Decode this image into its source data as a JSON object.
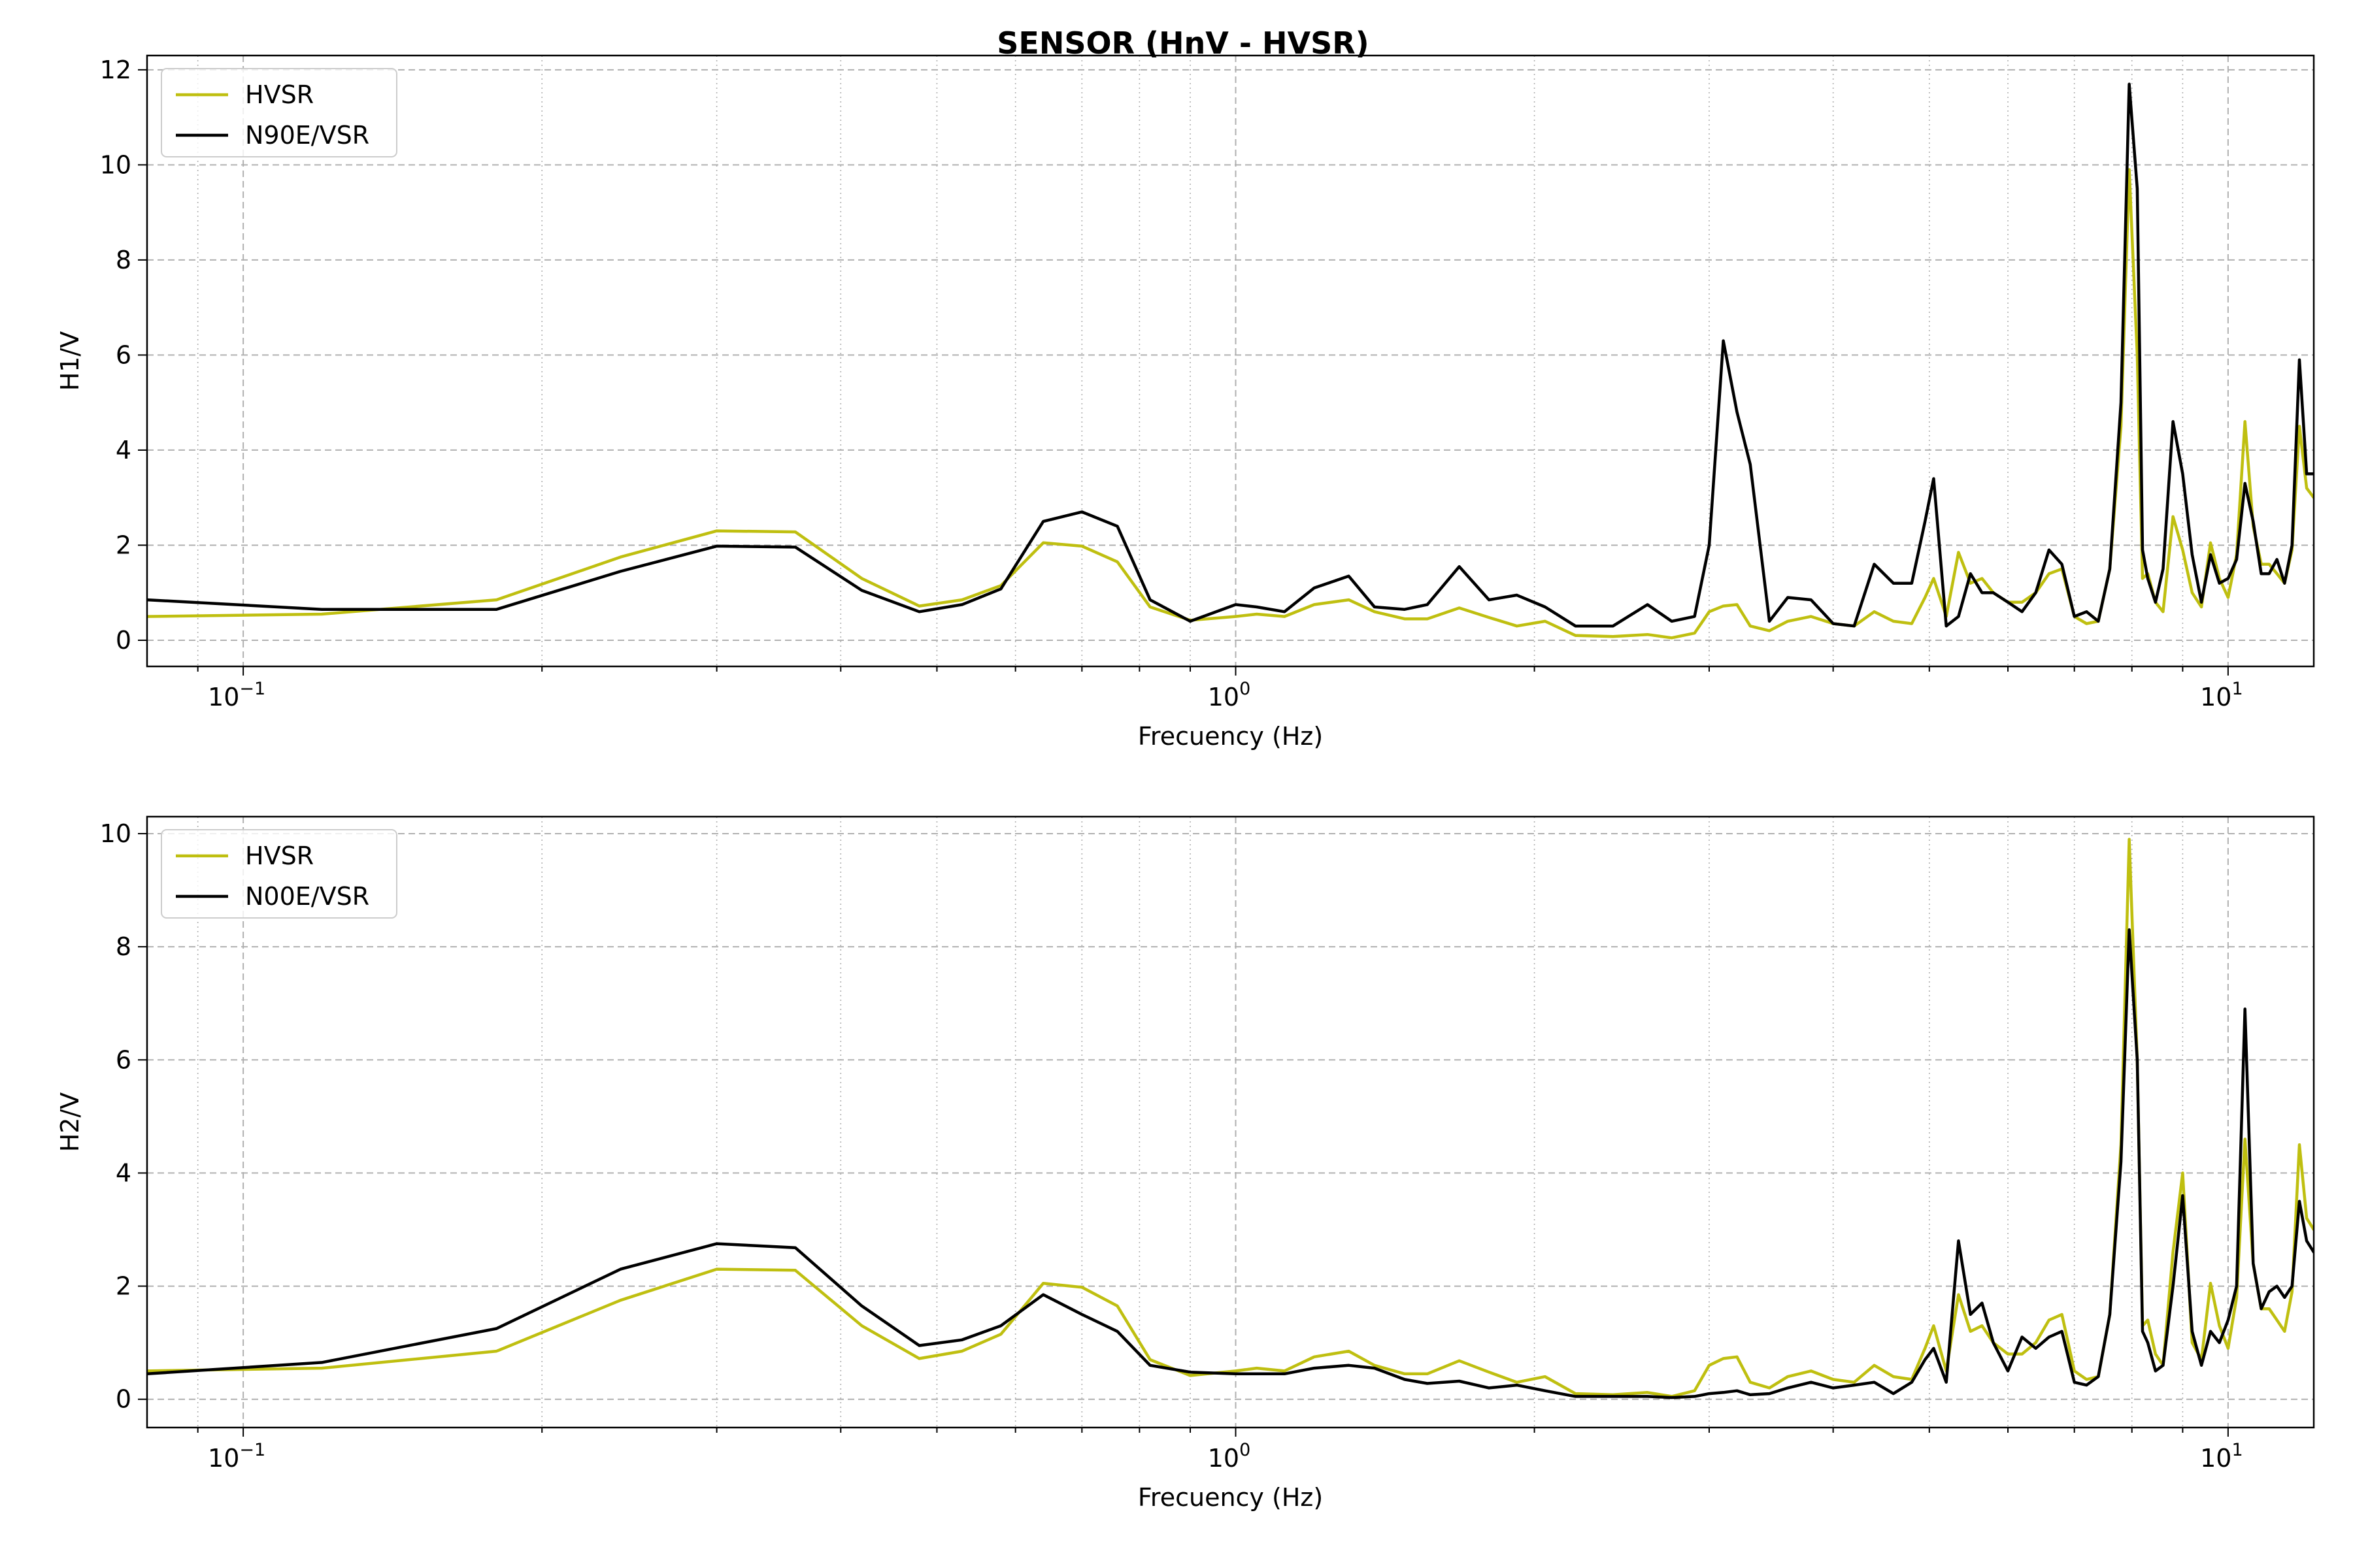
{
  "figure": {
    "title": "SENSOR (HnV - HVSR)"
  },
  "colors": {
    "hvsr": "#bfbf10",
    "component": "#000000",
    "grid": "#b0b0b0"
  },
  "chart_data": [
    {
      "type": "line",
      "xlabel": "Frecuency (Hz)",
      "ylabel": "H1/V",
      "xscale": "log",
      "xlim": [
        0.08,
        12.2
      ],
      "ylim": [
        -0.55,
        12.3
      ],
      "xticks": [
        {
          "base": "10",
          "exp": "−1",
          "value": 0.1
        },
        {
          "base": "10",
          "exp": "0",
          "value": 1
        },
        {
          "base": "10",
          "exp": "1",
          "value": 10
        }
      ],
      "yticks": [
        0,
        2,
        4,
        6,
        8,
        10,
        12
      ],
      "grid": true,
      "legend_position": "upper-left",
      "series": [
        {
          "name": "HVSR",
          "color": "#bfbf10",
          "x": [
            0.08,
            0.12,
            0.18,
            0.24,
            0.3,
            0.36,
            0.42,
            0.48,
            0.53,
            0.58,
            0.64,
            0.7,
            0.76,
            0.82,
            0.9,
            1.0,
            1.05,
            1.12,
            1.2,
            1.3,
            1.38,
            1.48,
            1.56,
            1.68,
            1.8,
            1.92,
            2.05,
            2.2,
            2.4,
            2.6,
            2.75,
            2.9,
            3.0,
            3.1,
            3.2,
            3.3,
            3.45,
            3.6,
            3.8,
            4.0,
            4.2,
            4.4,
            4.6,
            4.8,
            4.95,
            5.05,
            5.2,
            5.35,
            5.5,
            5.65,
            5.8,
            6.0,
            6.2,
            6.4,
            6.6,
            6.8,
            7.0,
            7.2,
            7.4,
            7.6,
            7.8,
            7.95,
            8.1,
            8.2,
            8.3,
            8.45,
            8.6,
            8.8,
            9.0,
            9.2,
            9.4,
            9.6,
            9.8,
            10.0,
            10.2,
            10.4,
            10.6,
            10.8,
            11.0,
            11.2,
            11.4,
            11.6,
            11.8,
            12.0,
            12.2
          ],
          "y": [
            0.5,
            0.55,
            0.85,
            1.75,
            2.3,
            2.28,
            1.3,
            0.72,
            0.85,
            1.15,
            2.05,
            1.98,
            1.65,
            0.7,
            0.42,
            0.5,
            0.55,
            0.5,
            0.75,
            0.85,
            0.6,
            0.45,
            0.45,
            0.68,
            0.48,
            0.3,
            0.4,
            0.1,
            0.08,
            0.12,
            0.05,
            0.15,
            0.6,
            0.72,
            0.75,
            0.3,
            0.2,
            0.4,
            0.5,
            0.35,
            0.3,
            0.6,
            0.4,
            0.35,
            0.9,
            1.3,
            0.5,
            1.85,
            1.2,
            1.3,
            1.0,
            0.8,
            0.8,
            1.0,
            1.4,
            1.5,
            0.5,
            0.35,
            0.4,
            1.5,
            4.5,
            9.9,
            6.0,
            1.3,
            1.4,
            0.8,
            0.6,
            2.6,
            1.9,
            1.0,
            0.7,
            2.05,
            1.3,
            0.9,
            1.8,
            4.6,
            2.4,
            1.6,
            1.6,
            1.4,
            1.2,
            1.9,
            4.5,
            3.2,
            3.0
          ]
        },
        {
          "name": "N90E/VSR",
          "color": "#000000",
          "x": [
            0.08,
            0.12,
            0.18,
            0.24,
            0.3,
            0.36,
            0.42,
            0.48,
            0.53,
            0.58,
            0.64,
            0.7,
            0.76,
            0.82,
            0.9,
            1.0,
            1.05,
            1.12,
            1.2,
            1.3,
            1.38,
            1.48,
            1.56,
            1.68,
            1.8,
            1.92,
            2.05,
            2.2,
            2.4,
            2.6,
            2.75,
            2.9,
            3.0,
            3.1,
            3.2,
            3.3,
            3.45,
            3.6,
            3.8,
            4.0,
            4.2,
            4.4,
            4.6,
            4.8,
            4.95,
            5.05,
            5.2,
            5.35,
            5.5,
            5.65,
            5.8,
            6.0,
            6.2,
            6.4,
            6.6,
            6.8,
            7.0,
            7.2,
            7.4,
            7.6,
            7.8,
            7.95,
            8.1,
            8.2,
            8.3,
            8.45,
            8.6,
            8.8,
            9.0,
            9.2,
            9.4,
            9.6,
            9.8,
            10.0,
            10.2,
            10.4,
            10.6,
            10.8,
            11.0,
            11.2,
            11.4,
            11.6,
            11.8,
            12.0,
            12.2
          ],
          "y": [
            0.85,
            0.65,
            0.65,
            1.45,
            1.98,
            1.96,
            1.05,
            0.6,
            0.75,
            1.08,
            2.5,
            2.7,
            2.4,
            0.85,
            0.4,
            0.75,
            0.7,
            0.6,
            1.1,
            1.35,
            0.7,
            0.65,
            0.75,
            1.55,
            0.85,
            0.95,
            0.7,
            0.3,
            0.3,
            0.75,
            0.4,
            0.5,
            2.0,
            6.3,
            4.8,
            3.7,
            0.4,
            0.9,
            0.85,
            0.35,
            0.3,
            1.6,
            1.2,
            1.2,
            2.5,
            3.4,
            0.3,
            0.5,
            1.4,
            1.0,
            1.0,
            0.8,
            0.6,
            1.0,
            1.9,
            1.6,
            0.5,
            0.6,
            0.4,
            1.5,
            5.0,
            11.7,
            9.5,
            1.9,
            1.3,
            0.8,
            1.5,
            4.6,
            3.5,
            1.8,
            0.8,
            1.8,
            1.2,
            1.3,
            1.7,
            3.3,
            2.5,
            1.4,
            1.4,
            1.7,
            1.2,
            2.0,
            5.9,
            3.5,
            3.5
          ]
        }
      ]
    },
    {
      "type": "line",
      "xlabel": "Frecuency (Hz)",
      "ylabel": "H2/V",
      "xscale": "log",
      "xlim": [
        0.08,
        12.2
      ],
      "ylim": [
        -0.5,
        10.3
      ],
      "xticks": [
        {
          "base": "10",
          "exp": "−1",
          "value": 0.1
        },
        {
          "base": "10",
          "exp": "0",
          "value": 1
        },
        {
          "base": "10",
          "exp": "1",
          "value": 10
        }
      ],
      "yticks": [
        0,
        2,
        4,
        6,
        8,
        10
      ],
      "grid": true,
      "legend_position": "upper-left",
      "series": [
        {
          "name": "HVSR",
          "color": "#bfbf10",
          "x": [
            0.08,
            0.12,
            0.18,
            0.24,
            0.3,
            0.36,
            0.42,
            0.48,
            0.53,
            0.58,
            0.64,
            0.7,
            0.76,
            0.82,
            0.9,
            1.0,
            1.05,
            1.12,
            1.2,
            1.3,
            1.38,
            1.48,
            1.56,
            1.68,
            1.8,
            1.92,
            2.05,
            2.2,
            2.4,
            2.6,
            2.75,
            2.9,
            3.0,
            3.1,
            3.2,
            3.3,
            3.45,
            3.6,
            3.8,
            4.0,
            4.2,
            4.4,
            4.6,
            4.8,
            4.95,
            5.05,
            5.2,
            5.35,
            5.5,
            5.65,
            5.8,
            6.0,
            6.2,
            6.4,
            6.6,
            6.8,
            7.0,
            7.2,
            7.4,
            7.6,
            7.8,
            7.95,
            8.1,
            8.2,
            8.3,
            8.45,
            8.6,
            8.8,
            9.0,
            9.2,
            9.4,
            9.6,
            9.8,
            10.0,
            10.2,
            10.4,
            10.6,
            10.8,
            11.0,
            11.2,
            11.4,
            11.6,
            11.8,
            12.0,
            12.2
          ],
          "y": [
            0.5,
            0.55,
            0.85,
            1.75,
            2.3,
            2.28,
            1.3,
            0.72,
            0.85,
            1.15,
            2.05,
            1.98,
            1.65,
            0.7,
            0.42,
            0.5,
            0.55,
            0.5,
            0.75,
            0.85,
            0.6,
            0.45,
            0.45,
            0.68,
            0.48,
            0.3,
            0.4,
            0.1,
            0.08,
            0.12,
            0.05,
            0.15,
            0.6,
            0.72,
            0.75,
            0.3,
            0.2,
            0.4,
            0.5,
            0.35,
            0.3,
            0.6,
            0.4,
            0.35,
            0.9,
            1.3,
            0.5,
            1.85,
            1.2,
            1.3,
            1.0,
            0.8,
            0.8,
            1.0,
            1.4,
            1.5,
            0.5,
            0.35,
            0.4,
            1.5,
            4.5,
            9.9,
            6.0,
            1.3,
            1.4,
            0.8,
            0.6,
            2.6,
            4.0,
            1.0,
            0.7,
            2.05,
            1.3,
            0.9,
            1.8,
            4.6,
            2.4,
            1.6,
            1.6,
            1.4,
            1.2,
            1.9,
            4.5,
            3.2,
            3.0
          ]
        },
        {
          "name": "N00E/VSR",
          "color": "#000000",
          "x": [
            0.08,
            0.12,
            0.18,
            0.24,
            0.3,
            0.36,
            0.42,
            0.48,
            0.53,
            0.58,
            0.64,
            0.7,
            0.76,
            0.82,
            0.9,
            1.0,
            1.05,
            1.12,
            1.2,
            1.3,
            1.38,
            1.48,
            1.56,
            1.68,
            1.8,
            1.92,
            2.05,
            2.2,
            2.4,
            2.6,
            2.75,
            2.9,
            3.0,
            3.1,
            3.2,
            3.3,
            3.45,
            3.6,
            3.8,
            4.0,
            4.2,
            4.4,
            4.6,
            4.8,
            4.95,
            5.05,
            5.2,
            5.35,
            5.5,
            5.65,
            5.8,
            6.0,
            6.2,
            6.4,
            6.6,
            6.8,
            7.0,
            7.2,
            7.4,
            7.6,
            7.8,
            7.95,
            8.1,
            8.2,
            8.3,
            8.45,
            8.6,
            8.8,
            9.0,
            9.2,
            9.4,
            9.6,
            9.8,
            10.0,
            10.2,
            10.4,
            10.6,
            10.8,
            11.0,
            11.2,
            11.4,
            11.6,
            11.8,
            12.0,
            12.2
          ],
          "y": [
            0.45,
            0.65,
            1.25,
            2.3,
            2.75,
            2.68,
            1.65,
            0.95,
            1.05,
            1.3,
            1.85,
            1.5,
            1.2,
            0.6,
            0.48,
            0.45,
            0.45,
            0.45,
            0.55,
            0.6,
            0.55,
            0.35,
            0.28,
            0.32,
            0.2,
            0.25,
            0.15,
            0.05,
            0.05,
            0.05,
            0.03,
            0.05,
            0.1,
            0.12,
            0.15,
            0.08,
            0.1,
            0.2,
            0.3,
            0.2,
            0.25,
            0.3,
            0.1,
            0.3,
            0.7,
            0.9,
            0.3,
            2.8,
            1.5,
            1.7,
            1.0,
            0.5,
            1.1,
            0.9,
            1.1,
            1.2,
            0.3,
            0.25,
            0.4,
            1.5,
            4.2,
            8.3,
            6.0,
            1.2,
            1.0,
            0.5,
            0.6,
            2.0,
            3.6,
            1.2,
            0.6,
            1.2,
            1.0,
            1.4,
            2.0,
            6.9,
            2.4,
            1.6,
            1.9,
            2.0,
            1.8,
            2.0,
            3.5,
            2.8,
            2.6
          ]
        }
      ]
    }
  ]
}
